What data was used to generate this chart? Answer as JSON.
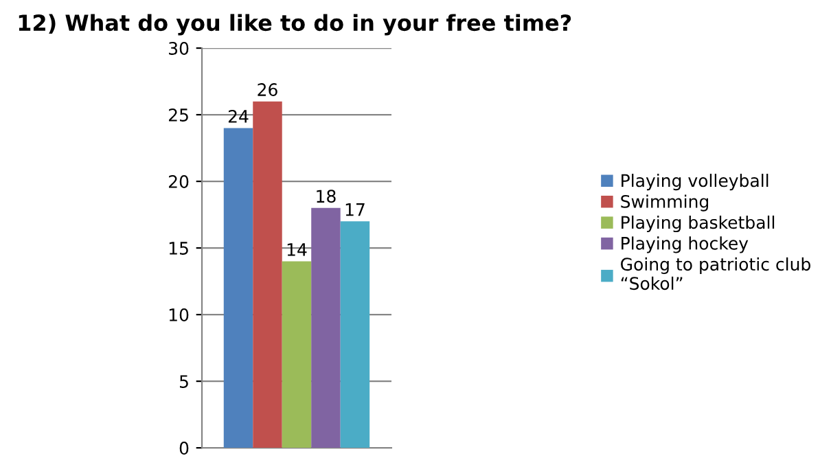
{
  "chart_data": {
    "type": "bar",
    "title": "12) What do you like to do in your free time?",
    "categories": [
      null
    ],
    "series": [
      {
        "name": "Playing volleyball",
        "color": "#4f81bd",
        "values": [
          24
        ]
      },
      {
        "name": "Swimming",
        "color": "#c0504d",
        "values": [
          26
        ]
      },
      {
        "name": "Playing basketball",
        "color": "#9bbb59",
        "values": [
          14
        ]
      },
      {
        "name": "Playing hockey",
        "color": "#8064a2",
        "values": [
          18
        ]
      },
      {
        "name": "Going to patriotic club\n“Sokol”",
        "color": "#4bacc6",
        "values": [
          17
        ]
      }
    ],
    "ylim": [
      0,
      30
    ],
    "yticks": [
      0,
      5,
      10,
      15,
      20,
      25,
      30
    ],
    "grid": "y",
    "legend": "right",
    "data_labels": true
  }
}
